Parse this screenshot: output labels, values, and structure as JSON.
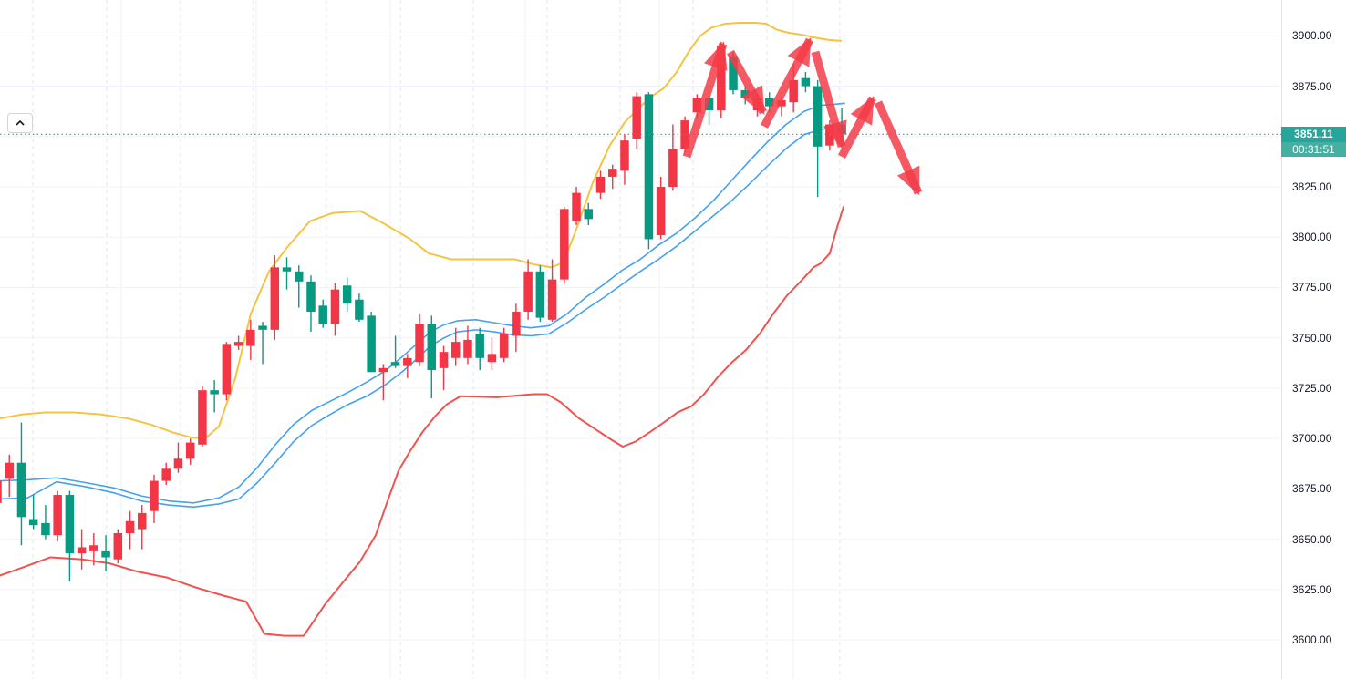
{
  "colors": {
    "up": "#f23645",
    "down": "#089981",
    "upper_band": "#f5c342",
    "lower_band": "#ef5350",
    "ma": "#45a1f0",
    "grid_h": "#f0f3fa",
    "grid_v_solid": "#eef1f6",
    "grid_v_dashed": "#e3e6ee",
    "price_line": "#26a69a",
    "badge_price_bg": "#26a69a",
    "badge_countdown_bg": "#45b0a1",
    "axis_text": "#131722",
    "arrow": "rgba(243,60,72,0.85)"
  },
  "price_badge": {
    "value": "3851.11",
    "countdown": "00:31:51"
  },
  "axis": {
    "labels": [
      "3900.00",
      "3875.00",
      "3850.00",
      "3825.00",
      "3800.00",
      "3775.00",
      "3750.00",
      "3725.00",
      "3700.00",
      "3675.00",
      "3650.00",
      "3625.00",
      "3600.00"
    ],
    "prices": [
      3900,
      3875,
      3850,
      3825,
      3800,
      3775,
      3750,
      3725,
      3700,
      3675,
      3650,
      3625,
      3600
    ]
  },
  "chart_data": {
    "type": "candlestick",
    "title": "",
    "convention": "red = bullish (close>open), green = bearish (close<open)",
    "y_axis": {
      "min": 3600,
      "max": 3900,
      "tick_step": 25
    },
    "last_price": 3851.11,
    "countdown": "00:31:51",
    "candles": {
      "columns": [
        "open",
        "high",
        "low",
        "close"
      ],
      "rows": [
        [
          3668,
          3682,
          3665,
          3679
        ],
        [
          3680,
          3692,
          3671,
          3688
        ],
        [
          3688,
          3708,
          3647,
          3661
        ],
        [
          3660,
          3672,
          3655,
          3657
        ],
        [
          3658,
          3667,
          3650,
          3652
        ],
        [
          3652,
          3674,
          3649,
          3672
        ],
        [
          3672,
          3674,
          3629,
          3643
        ],
        [
          3643,
          3655,
          3635,
          3646
        ],
        [
          3644,
          3653,
          3637,
          3647
        ],
        [
          3644,
          3652,
          3634,
          3641
        ],
        [
          3640,
          3655,
          3638,
          3653
        ],
        [
          3653,
          3664,
          3645,
          3659
        ],
        [
          3655,
          3667,
          3645,
          3663
        ],
        [
          3664,
          3682,
          3658,
          3679
        ],
        [
          3679,
          3688,
          3677,
          3685
        ],
        [
          3685,
          3698,
          3683,
          3690
        ],
        [
          3690,
          3700,
          3687,
          3698
        ],
        [
          3697,
          3726,
          3696,
          3724
        ],
        [
          3724,
          3729,
          3713,
          3722
        ],
        [
          3722,
          3748,
          3719,
          3747
        ],
        [
          3746,
          3751,
          3744,
          3748
        ],
        [
          3746,
          3759,
          3739,
          3754
        ],
        [
          3756,
          3758,
          3737,
          3754
        ],
        [
          3754,
          3791,
          3749,
          3785
        ],
        [
          3785,
          3790,
          3774,
          3783
        ],
        [
          3783,
          3786,
          3765,
          3778
        ],
        [
          3778,
          3781,
          3753,
          3763
        ],
        [
          3766,
          3769,
          3755,
          3757
        ],
        [
          3757,
          3777,
          3751,
          3774
        ],
        [
          3776,
          3780,
          3763,
          3767
        ],
        [
          3769,
          3772,
          3758,
          3759
        ],
        [
          3761,
          3763,
          3733,
          3733
        ],
        [
          3733,
          3737,
          3719,
          3735
        ],
        [
          3738,
          3751,
          3735,
          3736
        ],
        [
          3736,
          3742,
          3730,
          3740
        ],
        [
          3738,
          3762,
          3736,
          3757
        ],
        [
          3757,
          3761,
          3720,
          3734
        ],
        [
          3735,
          3746,
          3724,
          3743
        ],
        [
          3740,
          3755,
          3736,
          3748
        ],
        [
          3740,
          3756,
          3737,
          3749
        ],
        [
          3752,
          3755,
          3734,
          3740
        ],
        [
          3738,
          3750,
          3734,
          3742
        ],
        [
          3740,
          3755,
          3738,
          3752
        ],
        [
          3751,
          3767,
          3743,
          3763
        ],
        [
          3763,
          3789,
          3759,
          3783
        ],
        [
          3783,
          3786,
          3758,
          3760
        ],
        [
          3759,
          3789,
          3758,
          3779
        ],
        [
          3779,
          3815,
          3777,
          3814
        ],
        [
          3808,
          3825,
          3806,
          3822
        ],
        [
          3814,
          3817,
          3806,
          3809
        ],
        [
          3822,
          3833,
          3819,
          3830
        ],
        [
          3830,
          3836,
          3824,
          3834
        ],
        [
          3833,
          3851,
          3826,
          3848
        ],
        [
          3849,
          3872,
          3844,
          3870
        ],
        [
          3871,
          3872,
          3794,
          3799
        ],
        [
          3801,
          3830,
          3799,
          3825
        ],
        [
          3825,
          3856,
          3823,
          3844
        ],
        [
          3844,
          3860,
          3842,
          3858
        ],
        [
          3862,
          3871,
          3859,
          3869
        ],
        [
          3869,
          3870,
          3856,
          3863
        ],
        [
          3863,
          3897,
          3859,
          3895
        ],
        [
          3890,
          3892,
          3871,
          3873
        ],
        [
          3873,
          3875,
          3866,
          3869
        ],
        [
          3863,
          3871,
          3860,
          3869
        ],
        [
          3869,
          3872,
          3862,
          3865
        ],
        [
          3865,
          3870,
          3860,
          3868
        ],
        [
          3867,
          3886,
          3862,
          3878
        ],
        [
          3879,
          3882,
          3872,
          3875
        ],
        [
          3875,
          3878,
          3820,
          3845
        ],
        [
          3845.5,
          3858,
          3843,
          3856
        ],
        [
          3856,
          3864,
          3845,
          3851.11
        ]
      ]
    },
    "overlays": {
      "upper_band": {
        "name": "bollinger-upper",
        "points": [
          [
            0,
            3710
          ],
          [
            25,
            3712
          ],
          [
            50,
            3713
          ],
          [
            80,
            3713
          ],
          [
            110,
            3712
          ],
          [
            140,
            3710
          ],
          [
            165,
            3707
          ],
          [
            190,
            3703
          ],
          [
            210,
            3700.5
          ],
          [
            225,
            3700
          ],
          [
            240,
            3706
          ],
          [
            258,
            3730
          ],
          [
            275,
            3762
          ],
          [
            295,
            3783
          ],
          [
            315,
            3795
          ],
          [
            340,
            3808
          ],
          [
            365,
            3812
          ],
          [
            395,
            3813
          ],
          [
            420,
            3807
          ],
          [
            450,
            3799
          ],
          [
            470,
            3792
          ],
          [
            495,
            3789
          ],
          [
            565,
            3789
          ],
          [
            585,
            3786.5
          ],
          [
            605,
            3785
          ],
          [
            618,
            3787.5
          ],
          [
            632,
            3804
          ],
          [
            650,
            3827
          ],
          [
            668,
            3845
          ],
          [
            685,
            3857
          ],
          [
            700,
            3864
          ],
          [
            715,
            3870
          ],
          [
            728,
            3874
          ],
          [
            742,
            3882
          ],
          [
            755,
            3892
          ],
          [
            768,
            3900
          ],
          [
            780,
            3904
          ],
          [
            795,
            3906
          ],
          [
            812,
            3906.5
          ],
          [
            828,
            3906.5
          ],
          [
            840,
            3906
          ],
          [
            852,
            3903
          ],
          [
            865,
            3901.5
          ],
          [
            880,
            3900.5
          ],
          [
            895,
            3899
          ],
          [
            908,
            3898
          ],
          [
            922,
            3897.5
          ]
        ]
      },
      "lower_band": {
        "name": "bollinger-lower",
        "points": [
          [
            0,
            3632
          ],
          [
            25,
            3636
          ],
          [
            55,
            3641
          ],
          [
            90,
            3640
          ],
          [
            120,
            3638
          ],
          [
            150,
            3634
          ],
          [
            183,
            3631
          ],
          [
            215,
            3626
          ],
          [
            245,
            3622
          ],
          [
            270,
            3619
          ],
          [
            290,
            3603
          ],
          [
            312,
            3602
          ],
          [
            333,
            3602
          ],
          [
            357,
            3618
          ],
          [
            375,
            3628
          ],
          [
            395,
            3639
          ],
          [
            412,
            3652
          ],
          [
            425,
            3669
          ],
          [
            437,
            3684
          ],
          [
            450,
            3694
          ],
          [
            463,
            3703
          ],
          [
            477,
            3711
          ],
          [
            490,
            3717
          ],
          [
            505,
            3721
          ],
          [
            545,
            3720.5
          ],
          [
            585,
            3722
          ],
          [
            600,
            3722
          ],
          [
            615,
            3718
          ],
          [
            635,
            3710
          ],
          [
            655,
            3704
          ],
          [
            670,
            3699.5
          ],
          [
            683,
            3696
          ],
          [
            697,
            3698.5
          ],
          [
            712,
            3703
          ],
          [
            728,
            3708
          ],
          [
            743,
            3713
          ],
          [
            758,
            3716
          ],
          [
            772,
            3722
          ],
          [
            788,
            3731
          ],
          [
            803,
            3738
          ],
          [
            818,
            3744
          ],
          [
            833,
            3752
          ],
          [
            848,
            3762
          ],
          [
            863,
            3771
          ],
          [
            878,
            3778
          ],
          [
            892,
            3785
          ],
          [
            900,
            3787
          ],
          [
            910,
            3792
          ],
          [
            918,
            3805
          ],
          [
            925,
            3815
          ]
        ]
      },
      "ma_fast": {
        "name": "ma-fast",
        "points": [
          [
            0,
            3679
          ],
          [
            30,
            3679.5
          ],
          [
            62,
            3680.5
          ],
          [
            95,
            3678
          ],
          [
            125,
            3675.5
          ],
          [
            155,
            3671.5
          ],
          [
            185,
            3669
          ],
          [
            212,
            3668
          ],
          [
            240,
            3670.5
          ],
          [
            262,
            3676
          ],
          [
            282,
            3685.5
          ],
          [
            302,
            3697
          ],
          [
            322,
            3707
          ],
          [
            342,
            3714
          ],
          [
            362,
            3718.5
          ],
          [
            382,
            3723
          ],
          [
            402,
            3728
          ],
          [
            422,
            3733.5
          ],
          [
            442,
            3741
          ],
          [
            457,
            3747
          ],
          [
            472,
            3753
          ],
          [
            487,
            3756.5
          ],
          [
            502,
            3758.5
          ],
          [
            522,
            3759
          ],
          [
            542,
            3757.5
          ],
          [
            562,
            3756
          ],
          [
            582,
            3755
          ],
          [
            602,
            3756
          ],
          [
            622,
            3762
          ],
          [
            642,
            3770
          ],
          [
            662,
            3776.5
          ],
          [
            682,
            3783.5
          ],
          [
            702,
            3789
          ],
          [
            722,
            3796
          ],
          [
            742,
            3802
          ],
          [
            762,
            3809.5
          ],
          [
            782,
            3818
          ],
          [
            802,
            3828
          ],
          [
            822,
            3838
          ],
          [
            842,
            3847.5
          ],
          [
            862,
            3856
          ],
          [
            882,
            3862.5
          ],
          [
            900,
            3865.5
          ],
          [
            915,
            3866
          ],
          [
            926,
            3866.5
          ]
        ]
      },
      "ma_slow": {
        "name": "ma-slow",
        "points": [
          [
            0,
            3670
          ],
          [
            30,
            3670.5
          ],
          [
            62,
            3678.5
          ],
          [
            95,
            3676
          ],
          [
            125,
            3673
          ],
          [
            155,
            3669
          ],
          [
            185,
            3667
          ],
          [
            212,
            3666
          ],
          [
            240,
            3667.5
          ],
          [
            262,
            3670
          ],
          [
            282,
            3678
          ],
          [
            302,
            3688
          ],
          [
            322,
            3698.5
          ],
          [
            342,
            3706.5
          ],
          [
            362,
            3712
          ],
          [
            382,
            3717
          ],
          [
            402,
            3721
          ],
          [
            422,
            3726.5
          ],
          [
            442,
            3733.5
          ],
          [
            457,
            3739.5
          ],
          [
            472,
            3746
          ],
          [
            487,
            3750
          ],
          [
            502,
            3753
          ],
          [
            522,
            3754
          ],
          [
            542,
            3753
          ],
          [
            562,
            3751.5
          ],
          [
            582,
            3751
          ],
          [
            602,
            3752
          ],
          [
            622,
            3757.5
          ],
          [
            642,
            3764
          ],
          [
            662,
            3770
          ],
          [
            682,
            3776.5
          ],
          [
            702,
            3783
          ],
          [
            722,
            3789
          ],
          [
            742,
            3795.5
          ],
          [
            762,
            3803
          ],
          [
            782,
            3810.5
          ],
          [
            802,
            3818
          ],
          [
            822,
            3826.5
          ],
          [
            842,
            3835.5
          ],
          [
            862,
            3844
          ],
          [
            882,
            3851
          ],
          [
            900,
            3853.5
          ],
          [
            915,
            3854.5
          ],
          [
            926,
            3855
          ]
        ]
      }
    },
    "annotations": {
      "arrows": {
        "description": "hand-drawn zigzag trend arrows",
        "segments": [
          [
            753,
            3840,
            793,
            3896
          ],
          [
            801,
            3892,
            837,
            3862
          ],
          [
            838,
            3855,
            888,
            3898
          ],
          [
            894,
            3892,
            923,
            3845
          ],
          [
            923,
            3840,
            957,
            3869
          ],
          [
            963,
            3867,
            1007,
            3822
          ]
        ]
      }
    },
    "grid": {
      "vertical_solid_x": [
        133,
        281,
        428,
        576,
        723,
        870
      ],
      "vertical_dashed_x": [
        36,
        117,
        198,
        278,
        358,
        439,
        519,
        600,
        680,
        760,
        841,
        921
      ]
    },
    "legend_position": "none",
    "grid_visible": true
  }
}
